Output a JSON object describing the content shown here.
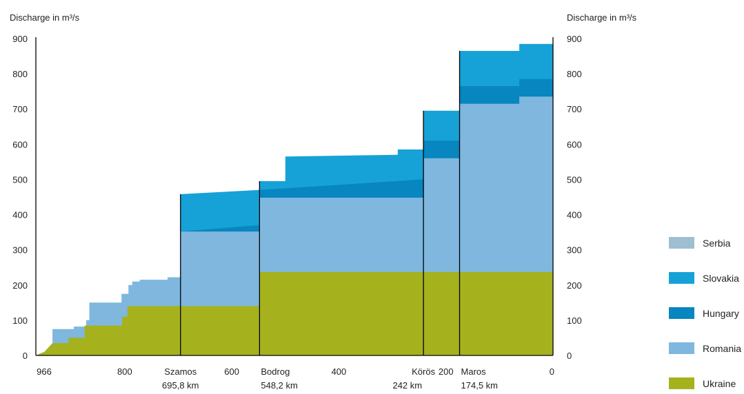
{
  "chart_data": {
    "type": "area",
    "ylabel_left": "Discharge in m³/s",
    "ylabel_right": "Discharge in m³/s",
    "y_ticks": [
      "0",
      "100",
      "200",
      "300",
      "400",
      "500",
      "600",
      "700",
      "800",
      "900"
    ],
    "ylim": [
      0,
      900
    ],
    "xlim": [
      966,
      0
    ],
    "x_ticks": [
      {
        "value": 966,
        "label": "966"
      },
      {
        "value": 800,
        "label": "800"
      },
      {
        "value": 600,
        "label": "600"
      },
      {
        "value": 400,
        "label": "400"
      },
      {
        "value": 200,
        "label": "200"
      },
      {
        "value": 0,
        "label": "0"
      }
    ],
    "tributaries": [
      {
        "name": "Szamos",
        "km": 695.8,
        "km_label": "695,8 km"
      },
      {
        "name": "Bodrog",
        "km": 548.2,
        "km_label": "548,2 km"
      },
      {
        "name": "Körös",
        "km": 242,
        "km_label": "242 km"
      },
      {
        "name": "Maros",
        "km": 174.5,
        "km_label": "174,5 km"
      }
    ],
    "legend": [
      {
        "name": "Serbia",
        "color": "#9fbfd0"
      },
      {
        "name": "Slovakia",
        "color": "#16a2d6"
      },
      {
        "name": "Hungary",
        "color": "#0886bf"
      },
      {
        "name": "Romania",
        "color": "#7fb7df"
      },
      {
        "name": "Ukraine",
        "color": "#a5b21e"
      }
    ],
    "series": [
      {
        "name": "Ukraine",
        "points": [
          [
            966,
            0
          ],
          [
            950,
            10
          ],
          [
            935,
            35
          ],
          [
            905,
            35
          ],
          [
            905,
            50
          ],
          [
            875,
            50
          ],
          [
            875,
            85
          ],
          [
            805,
            85
          ],
          [
            805,
            110
          ],
          [
            795,
            110
          ],
          [
            795,
            140
          ],
          [
            695.8,
            140
          ],
          [
            548.2,
            140
          ],
          [
            548.2,
            237
          ],
          [
            242,
            237
          ],
          [
            174.5,
            237
          ],
          [
            0,
            237
          ]
        ]
      },
      {
        "name": "Romania",
        "points": [
          [
            966,
            0
          ],
          [
            950,
            10
          ],
          [
            935,
            35
          ],
          [
            935,
            75
          ],
          [
            895,
            75
          ],
          [
            895,
            82
          ],
          [
            872,
            82
          ],
          [
            872,
            100
          ],
          [
            866,
            100
          ],
          [
            866,
            150
          ],
          [
            806,
            150
          ],
          [
            806,
            175
          ],
          [
            793,
            175
          ],
          [
            793,
            200
          ],
          [
            786,
            200
          ],
          [
            786,
            210
          ],
          [
            772,
            210
          ],
          [
            772,
            215
          ],
          [
            720,
            215
          ],
          [
            720,
            222
          ],
          [
            695.8,
            222
          ],
          [
            695.8,
            352
          ],
          [
            548.2,
            352
          ],
          [
            548.2,
            448
          ],
          [
            242,
            448
          ],
          [
            242,
            560
          ],
          [
            174.5,
            560
          ],
          [
            174.5,
            715
          ],
          [
            63,
            715
          ],
          [
            63,
            735
          ],
          [
            0,
            735
          ]
        ]
      },
      {
        "name": "Hungary",
        "points": [
          [
            695.8,
            352
          ],
          [
            548.2,
            370
          ],
          [
            548.2,
            470
          ],
          [
            242,
            500
          ],
          [
            242,
            610
          ],
          [
            174.5,
            610
          ],
          [
            174.5,
            765
          ],
          [
            63,
            765
          ],
          [
            63,
            785
          ],
          [
            0,
            785
          ]
        ]
      },
      {
        "name": "Slovakia",
        "points": [
          [
            695.8,
            458
          ],
          [
            548.2,
            470
          ],
          [
            548.2,
            495
          ],
          [
            500,
            495
          ],
          [
            500,
            565
          ],
          [
            290,
            570
          ],
          [
            290,
            585
          ],
          [
            242,
            585
          ],
          [
            242,
            695
          ],
          [
            174.5,
            695
          ],
          [
            174.5,
            865
          ],
          [
            63,
            865
          ],
          [
            63,
            885
          ],
          [
            0,
            885
          ]
        ]
      }
    ]
  }
}
